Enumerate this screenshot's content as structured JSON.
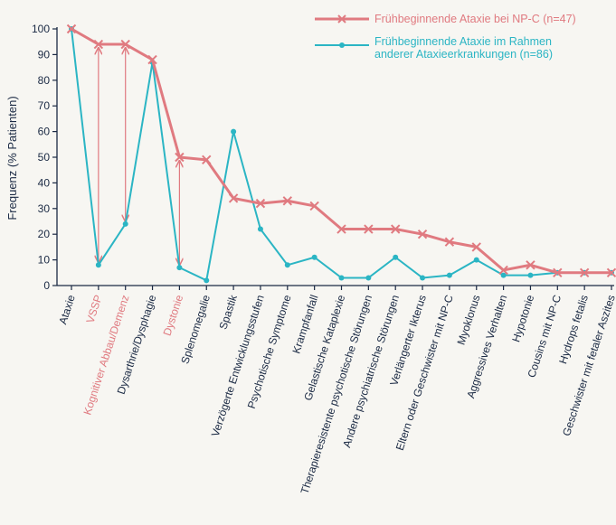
{
  "chart_data": {
    "type": "line",
    "ylabel": "Frequenz (% Patienten)",
    "ylim": [
      0,
      100
    ],
    "yticks": [
      0,
      10,
      20,
      30,
      40,
      50,
      60,
      70,
      80,
      90,
      100
    ],
    "grid": false,
    "legend_position": "top-right",
    "categories": [
      "Ataxie",
      "VSSP",
      "Kognitiver Abbau/Demenz",
      "Dysarthrie/Dysphagie",
      "Dystonie",
      "Splenomegalie",
      "Spastik",
      "Verzögerte Entwicklungsstufen",
      "Psychotische Symptome",
      "Krampfanfall",
      "Gelastische Kataplexie",
      "Therapieresistente psychotische Störungen",
      "Andere psychiatrische Störungen",
      "Verlängerter Ikterus",
      "Eltern oder Geschwister mit NP-C",
      "Myoklonus",
      "Aggressives Verhalten",
      "Hypotonie",
      "Cousins mit NP-C",
      "Hydrops fetalis",
      "Geschwister mit fetaler Aszites"
    ],
    "highlighted_categories": [
      "VSSP",
      "Kognitiver Abbau/Demenz",
      "Dystonie"
    ],
    "series": [
      {
        "name": "Frühbeginnende Ataxie bei NP-C (n=47)",
        "color": "#e07a80",
        "marker": "x",
        "values": [
          100,
          94,
          94,
          88,
          50,
          49,
          34,
          32,
          33,
          31,
          22,
          22,
          22,
          20,
          17,
          15,
          6,
          8,
          5,
          5,
          5
        ]
      },
      {
        "name_lines": [
          "Frühbeginnende Ataxie im Rahmen",
          "anderer Ataxieerkrankungen (n=86)"
        ],
        "color": "#2bb5c4",
        "marker": "dot",
        "values": [
          100,
          8,
          24,
          87,
          7,
          2,
          60,
          22,
          8,
          11,
          3,
          3,
          11,
          3,
          4,
          10,
          4,
          4,
          5,
          5,
          5
        ]
      }
    ],
    "difference_arrows": [
      {
        "category_index": 1,
        "from": 94,
        "to": 8
      },
      {
        "category_index": 2,
        "from": 94,
        "to": 24
      },
      {
        "category_index": 4,
        "from": 50,
        "to": 7
      }
    ]
  },
  "colors": {
    "axis": "#1b2a44",
    "text": "#1b2a44",
    "highlight": "#e07a80",
    "background": "#f7f6f2"
  }
}
